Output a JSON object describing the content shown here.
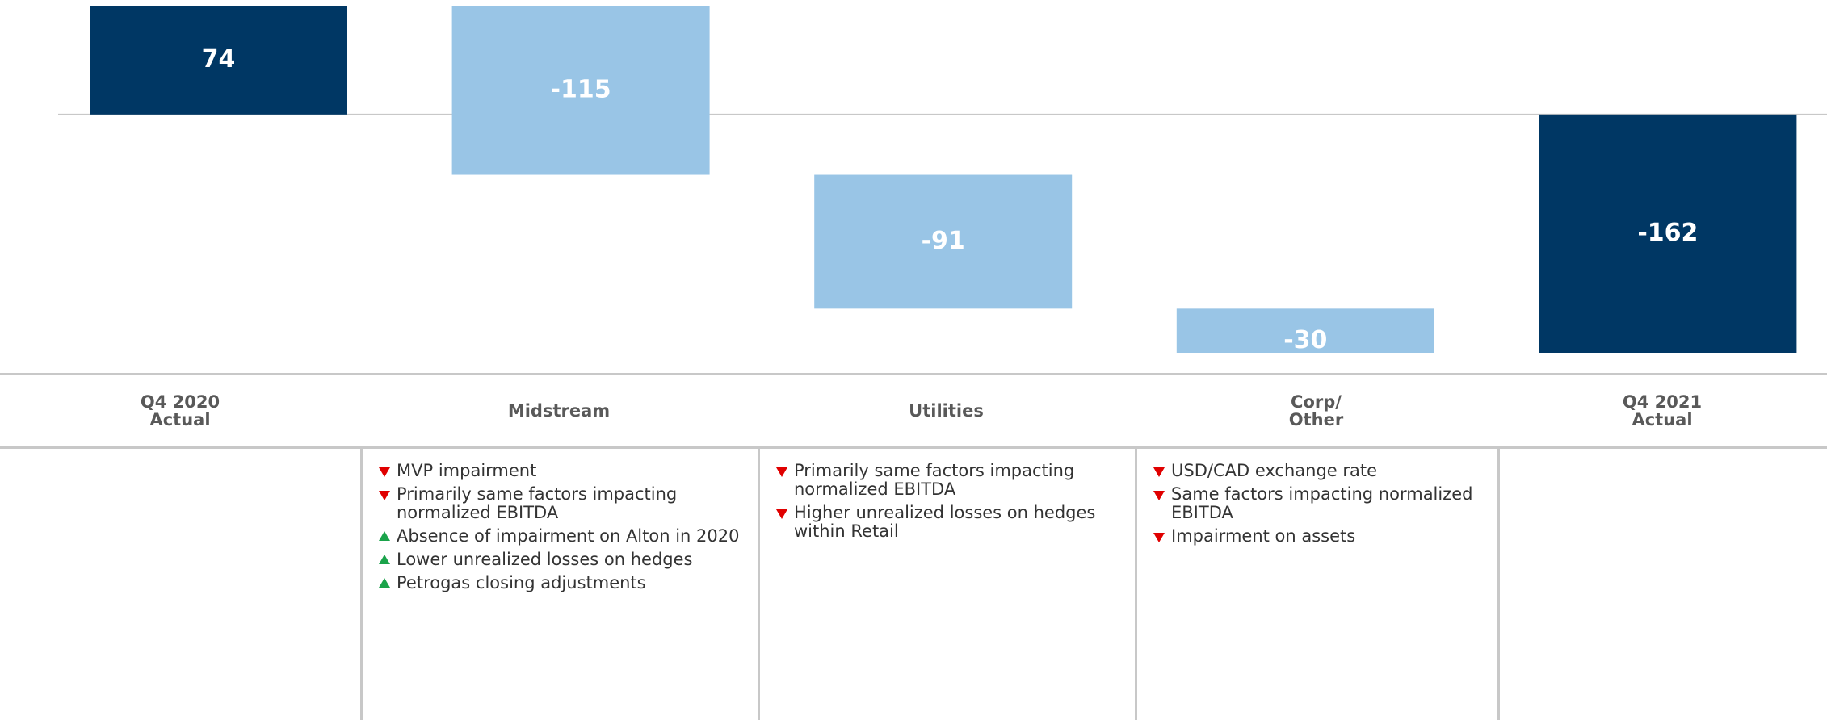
{
  "chart_data": {
    "type": "waterfall",
    "categories": [
      "Q4 2020\nActual",
      "Midstream",
      "Utilities",
      "Corp/\nOther",
      "Q4 2021\nActual"
    ],
    "values": [
      74,
      -115,
      -91,
      -30,
      -162
    ],
    "is_total": [
      true,
      false,
      false,
      false,
      true
    ],
    "colors": [
      "#003764",
      "#99c5e6",
      "#99c5e6",
      "#99c5e6",
      "#003764"
    ]
  },
  "notes": [
    [],
    [
      {
        "dir": "down",
        "text": "MVP impairment"
      },
      {
        "dir": "down",
        "text": "Primarily same factors impacting normalized EBITDA"
      },
      {
        "dir": "up",
        "text": "Absence of impairment on Alton in 2020"
      },
      {
        "dir": "up",
        "text": "Lower unrealized losses on hedges"
      },
      {
        "dir": "up",
        "text": "Petrogas closing adjustments"
      }
    ],
    [
      {
        "dir": "down",
        "text": "Primarily same factors impacting normalized EBITDA"
      },
      {
        "dir": "down",
        "text": "Higher unrealized losses on hedges within Retail"
      }
    ],
    [
      {
        "dir": "down",
        "text": "USD/CAD exchange rate"
      },
      {
        "dir": "down",
        "text": "Same factors impacting normalized EBITDA"
      },
      {
        "dir": "down",
        "text": "Impairment on assets"
      }
    ],
    []
  ]
}
